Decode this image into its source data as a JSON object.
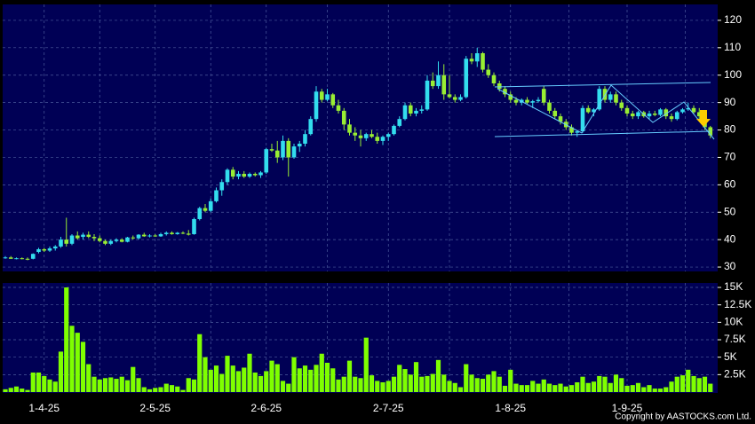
{
  "chart_data": [
    {
      "type": "candlestick",
      "up_color": "#33ddee",
      "down_color": "#99ee33",
      "grid": true,
      "ylim": [
        28.4,
        125.8
      ],
      "yticks": [
        30,
        40,
        50,
        60,
        70,
        80,
        90,
        100,
        110,
        120
      ],
      "categories": [
        null,
        null,
        null,
        null,
        null,
        null,
        null,
        "1-4-25",
        null,
        null,
        null,
        null,
        null,
        null,
        null,
        null,
        null,
        null,
        null,
        null,
        null,
        null,
        null,
        null,
        null,
        null,
        null,
        "2-5-25",
        null,
        null,
        null,
        null,
        null,
        null,
        null,
        null,
        null,
        null,
        null,
        null,
        null,
        null,
        null,
        null,
        null,
        null,
        null,
        "2-6-25",
        null,
        null,
        null,
        null,
        null,
        null,
        null,
        null,
        null,
        null,
        null,
        null,
        null,
        null,
        null,
        null,
        null,
        null,
        null,
        null,
        null,
        "2-7-25",
        null,
        null,
        null,
        null,
        null,
        null,
        null,
        null,
        null,
        null,
        null,
        null,
        null,
        null,
        null,
        null,
        null,
        null,
        null,
        null,
        null,
        "1-8-25",
        null,
        null,
        null,
        null,
        null,
        null,
        null,
        null,
        null,
        null,
        null,
        null,
        null,
        null,
        null,
        null,
        null,
        null,
        null,
        null,
        "1-9-25",
        null,
        null,
        null,
        null,
        null,
        null,
        null,
        null,
        null,
        null,
        null,
        null,
        null,
        null,
        null
      ],
      "ohlc": [
        [
          33.5,
          34,
          33,
          33.5
        ],
        [
          33.5,
          34,
          33,
          33
        ],
        [
          33,
          33.5,
          32.8,
          33.2
        ],
        [
          33.2,
          33.5,
          32.8,
          33
        ],
        [
          33,
          33.5,
          32.5,
          32.8
        ],
        [
          33,
          35,
          32.8,
          34.8
        ],
        [
          35.5,
          37,
          35,
          36.5
        ],
        [
          36.5,
          37,
          35.5,
          36
        ],
        [
          36,
          37.5,
          35.5,
          36.8
        ],
        [
          36.8,
          38,
          36,
          37.5
        ],
        [
          37.5,
          41,
          37,
          40
        ],
        [
          40,
          48,
          37.5,
          38.5
        ],
        [
          38.5,
          42,
          38,
          41.5
        ],
        [
          41.5,
          43,
          40,
          40.5
        ],
        [
          41,
          42.5,
          40,
          41.8
        ],
        [
          41.8,
          43,
          40.5,
          41
        ],
        [
          41,
          42,
          39.5,
          40.5
        ],
        [
          40.5,
          41.5,
          39,
          39.5
        ],
        [
          39.5,
          40,
          38,
          38.5
        ],
        [
          38.5,
          40,
          38,
          39.5
        ],
        [
          39.5,
          40.5,
          39,
          40
        ],
        [
          40,
          40.5,
          39,
          39.2
        ],
        [
          39.2,
          41,
          39,
          40.8
        ],
        [
          40.8,
          41.5,
          40,
          40.5
        ],
        [
          40.5,
          42,
          40,
          41.8
        ],
        [
          41.8,
          42.5,
          41,
          41.2
        ],
        [
          41.2,
          42,
          40.8,
          41.5
        ],
        [
          41.5,
          42,
          41,
          41.2
        ],
        [
          41.2,
          42.5,
          41,
          42
        ],
        [
          42,
          43,
          41.5,
          42.5
        ],
        [
          42.5,
          43,
          41.8,
          42
        ],
        [
          42,
          42.8,
          41.8,
          42.5
        ],
        [
          42.5,
          43,
          42,
          42.2
        ],
        [
          42.2,
          43.5,
          41.5,
          41.8
        ],
        [
          42,
          48,
          41.8,
          47.5
        ],
        [
          47.5,
          52,
          47,
          51.5
        ],
        [
          51.5,
          53,
          50,
          50.5
        ],
        [
          50.5,
          55,
          50,
          54
        ],
        [
          54,
          59,
          53.5,
          58
        ],
        [
          58,
          62,
          56,
          61
        ],
        [
          61,
          66,
          60,
          65.5
        ],
        [
          65.5,
          66.5,
          62,
          63
        ],
        [
          63,
          65,
          62,
          64
        ],
        [
          64,
          65,
          62.5,
          63
        ],
        [
          63,
          64.5,
          62.5,
          64
        ],
        [
          64,
          64.5,
          63,
          63.5
        ],
        [
          63.5,
          65,
          62.5,
          64.5
        ],
        [
          64.5,
          73.5,
          64,
          73
        ],
        [
          73,
          75,
          72,
          72.5
        ],
        [
          72.5,
          76,
          68,
          70
        ],
        [
          70,
          78,
          69,
          76
        ],
        [
          76,
          77,
          63,
          70
        ],
        [
          70,
          75,
          69.5,
          74
        ],
        [
          74,
          76,
          72,
          75
        ],
        [
          75,
          80,
          74,
          78.5
        ],
        [
          78.5,
          85,
          78,
          84
        ],
        [
          84,
          96,
          83,
          94
        ],
        [
          94,
          95,
          90,
          91
        ],
        [
          91,
          95,
          90.5,
          93
        ],
        [
          93,
          93.5,
          88,
          89
        ],
        [
          89,
          91,
          86,
          87
        ],
        [
          87,
          88,
          80,
          82
        ],
        [
          82,
          84,
          78,
          79
        ],
        [
          79,
          81,
          76,
          78
        ],
        [
          78,
          80,
          74,
          77
        ],
        [
          77,
          79,
          76,
          78.5
        ],
        [
          78.5,
          80,
          77,
          77.5
        ],
        [
          77.5,
          79,
          75,
          76
        ],
        [
          76,
          78,
          74.5,
          77.5
        ],
        [
          77.5,
          79,
          76,
          78.5
        ],
        [
          78.5,
          82,
          78,
          81.5
        ],
        [
          81.5,
          85,
          81,
          84
        ],
        [
          84,
          90,
          83.5,
          89
        ],
        [
          89,
          90,
          85,
          86
        ],
        [
          86,
          88,
          85,
          87
        ],
        [
          87,
          89,
          86,
          87.5
        ],
        [
          87.5,
          100,
          87,
          98
        ],
        [
          98,
          101,
          95,
          96
        ],
        [
          96,
          105,
          95,
          100
        ],
        [
          100,
          104,
          91,
          93
        ],
        [
          93,
          100,
          91.5,
          92
        ],
        [
          92,
          93,
          90,
          91
        ],
        [
          91,
          93,
          90.5,
          92
        ],
        [
          92,
          107,
          91.5,
          106
        ],
        [
          106,
          108,
          104,
          105
        ],
        [
          105,
          110,
          103,
          108
        ],
        [
          108,
          108.5,
          101,
          102
        ],
        [
          102,
          104,
          99,
          100
        ],
        [
          100,
          101,
          96,
          97
        ],
        [
          97,
          98,
          94,
          95
        ],
        [
          95,
          96,
          92,
          93
        ],
        [
          93,
          94,
          90,
          91
        ],
        [
          91,
          92,
          89,
          90
        ],
        [
          90,
          91.5,
          89,
          91
        ],
        [
          91,
          92,
          89.5,
          90
        ],
        [
          90,
          91,
          88,
          90.5
        ],
        [
          90.5,
          92,
          90,
          91
        ],
        [
          95,
          96,
          89,
          90
        ],
        [
          90,
          91,
          86,
          87
        ],
        [
          87,
          88,
          84,
          85
        ],
        [
          85,
          86,
          82,
          83
        ],
        [
          83,
          84,
          80,
          81
        ],
        [
          81,
          82,
          78,
          79
        ],
        [
          79,
          80,
          77.5,
          79.5
        ],
        [
          79.5,
          89,
          79,
          88
        ],
        [
          88,
          89,
          86,
          86.5
        ],
        [
          86.5,
          88,
          85,
          87.5
        ],
        [
          87.5,
          96,
          87,
          95
        ],
        [
          95,
          96,
          90,
          91
        ],
        [
          91,
          94,
          90,
          93
        ],
        [
          93,
          94,
          89,
          90
        ],
        [
          90,
          91,
          87,
          88
        ],
        [
          88,
          89,
          85,
          86
        ],
        [
          86,
          87,
          84,
          85
        ],
        [
          85,
          87,
          84,
          86.5
        ],
        [
          86.5,
          87,
          84.5,
          85
        ],
        [
          85,
          87,
          84,
          86
        ],
        [
          86,
          87,
          85,
          85.5
        ],
        [
          85.5,
          88,
          85,
          87.5
        ],
        [
          87.5,
          88,
          84,
          85
        ],
        [
          85,
          86,
          83,
          84
        ],
        [
          84,
          87,
          83.5,
          86.5
        ],
        [
          86.5,
          88,
          86,
          87.5
        ],
        [
          87.5,
          90,
          87,
          88
        ],
        [
          88,
          89,
          86,
          86.5
        ],
        [
          86.5,
          88,
          84,
          85
        ],
        [
          85,
          86,
          80,
          81
        ],
        [
          81,
          81.5,
          77,
          78
        ]
      ]
    },
    {
      "type": "bar",
      "color": "#7fff00",
      "grid": true,
      "ylim": [
        0,
        15640
      ],
      "yticks": [
        {
          "value": 2500,
          "label": "2.5K"
        },
        {
          "value": 5000,
          "label": "5K"
        },
        {
          "value": 7500,
          "label": "7.5K"
        },
        {
          "value": 10000,
          "label": "10K"
        },
        {
          "value": 12500,
          "label": "12.5K"
        },
        {
          "value": 15000,
          "label": "15K"
        }
      ],
      "values": [
        400,
        600,
        800,
        500,
        300,
        2800,
        2800,
        2300,
        1800,
        1500,
        5800,
        15000,
        9500,
        8500,
        7200,
        4000,
        2200,
        1800,
        2000,
        2100,
        1900,
        2200,
        1700,
        3600,
        2000,
        700,
        400,
        600,
        700,
        1200,
        1000,
        800,
        300,
        2000,
        1800,
        8300,
        5000,
        3200,
        3800,
        2600,
        5200,
        3800,
        3000,
        3500,
        5500,
        2800,
        2300,
        3000,
        4500,
        4000,
        1600,
        1200,
        5000,
        3400,
        3800,
        3200,
        3900,
        5500,
        4200,
        3400,
        1800,
        2200,
        4500,
        2200,
        2000,
        7800,
        2400,
        1600,
        1400,
        1600,
        2200,
        3900,
        3300,
        2500,
        4300,
        2200,
        2300,
        2600,
        4600,
        2500,
        1600,
        1300,
        700,
        4000,
        2500,
        2000,
        1900,
        2500,
        3000,
        2200,
        900,
        3200,
        1200,
        1000,
        1000,
        1600,
        1200,
        1800,
        1200,
        1000,
        1200,
        800,
        1000,
        1400,
        2200,
        1300,
        1500,
        2300,
        2200,
        1300,
        2500,
        2000,
        900,
        1000,
        1300,
        700,
        1000,
        500,
        500,
        700,
        1500,
        2200,
        2400,
        3200,
        2300,
        2000,
        2200,
        1200
      ]
    }
  ],
  "copyright": "Copyright by AASTOCKS.com Ltd."
}
